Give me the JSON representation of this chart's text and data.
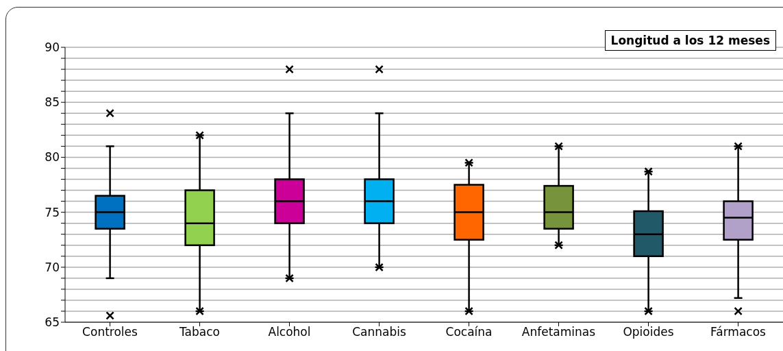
{
  "chart_data": {
    "type": "box",
    "title": "Longitud a los 12 meses",
    "categories": [
      "Controles",
      "Tabaco",
      "Alcohol",
      "Cannabis",
      "Cocaína",
      "Anfetaminas",
      "Opioides",
      "Fármacos"
    ],
    "colors": [
      "#0070c0",
      "#92d050",
      "#cc0099",
      "#00b0f0",
      "#ff6600",
      "#77933c",
      "#215968",
      "#b1a0c7"
    ],
    "boxes": [
      {
        "low": 69,
        "q1": 73.5,
        "median": 75,
        "q3": 76.5,
        "high": 81,
        "outliers": [
          84,
          65.6
        ]
      },
      {
        "low": 66,
        "q1": 72,
        "median": 74,
        "q3": 77,
        "high": 82,
        "outliers": [
          82,
          66
        ]
      },
      {
        "low": 69,
        "q1": 74,
        "median": 76,
        "q3": 78,
        "high": 84,
        "outliers": [
          88,
          69
        ]
      },
      {
        "low": 70,
        "q1": 74,
        "median": 76,
        "q3": 78,
        "high": 84,
        "outliers": [
          88,
          70
        ]
      },
      {
        "low": 66,
        "q1": 72.5,
        "median": 75,
        "q3": 77.5,
        "high": 79.5,
        "outliers": [
          79.5,
          66
        ]
      },
      {
        "low": 72,
        "q1": 73.5,
        "median": 75,
        "q3": 77.4,
        "high": 81,
        "outliers": [
          81,
          72
        ]
      },
      {
        "low": 66,
        "q1": 71,
        "median": 73,
        "q3": 75.1,
        "high": 78.7,
        "outliers": [
          78.7,
          66
        ]
      },
      {
        "low": 67.2,
        "q1": 72.5,
        "median": 74.5,
        "q3": 76,
        "high": 81,
        "outliers": [
          81,
          66
        ]
      }
    ],
    "ylim": [
      65,
      90
    ],
    "yticks": [
      65,
      {
        "value": 66,
        "label": null
      },
      {
        "value": 67,
        "label": null
      },
      {
        "value": 68,
        "label": null
      },
      {
        "value": 69,
        "label": null
      },
      70,
      {
        "value": 71,
        "label": null
      },
      {
        "value": 72,
        "label": null
      },
      {
        "value": 73,
        "label": null
      },
      {
        "value": 74,
        "label": null
      },
      75,
      {
        "value": 76,
        "label": null
      },
      {
        "value": 77,
        "label": null
      },
      {
        "value": 78,
        "label": null
      },
      {
        "value": 79,
        "label": null
      },
      80,
      {
        "value": 81,
        "label": null
      },
      {
        "value": 82,
        "label": null
      },
      {
        "value": 83,
        "label": null
      },
      {
        "value": 84,
        "label": null
      },
      85,
      {
        "value": 86,
        "label": null
      },
      {
        "value": 87,
        "label": null
      },
      {
        "value": 88,
        "label": null
      },
      {
        "value": 89,
        "label": null
      },
      90
    ],
    "grid": "y",
    "marker": "cross"
  }
}
